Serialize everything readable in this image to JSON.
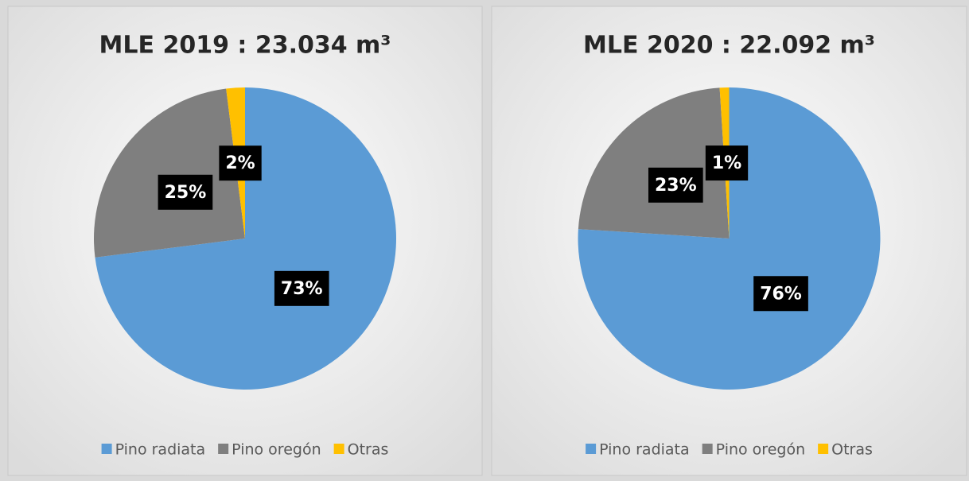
{
  "chart_data": [
    {
      "type": "pie",
      "title": "MLE 2019 : 23.034 m³",
      "categories": [
        "Pino radiata",
        "Pino oregón",
        "Otras"
      ],
      "values": [
        73,
        25,
        2
      ],
      "value_labels": [
        "73%",
        "25%",
        "2%"
      ],
      "colors": [
        "#5b9bd5",
        "#7f7f7f",
        "#ffc000"
      ],
      "legend": "bottom"
    },
    {
      "type": "pie",
      "title": "MLE 2020 : 22.092 m³",
      "categories": [
        "Pino radiata",
        "Pino oregón",
        "Otras"
      ],
      "values": [
        76,
        23,
        1
      ],
      "value_labels": [
        "76%",
        "23%",
        "1%"
      ],
      "colors": [
        "#5b9bd5",
        "#7f7f7f",
        "#ffc000"
      ],
      "legend": "bottom"
    }
  ]
}
